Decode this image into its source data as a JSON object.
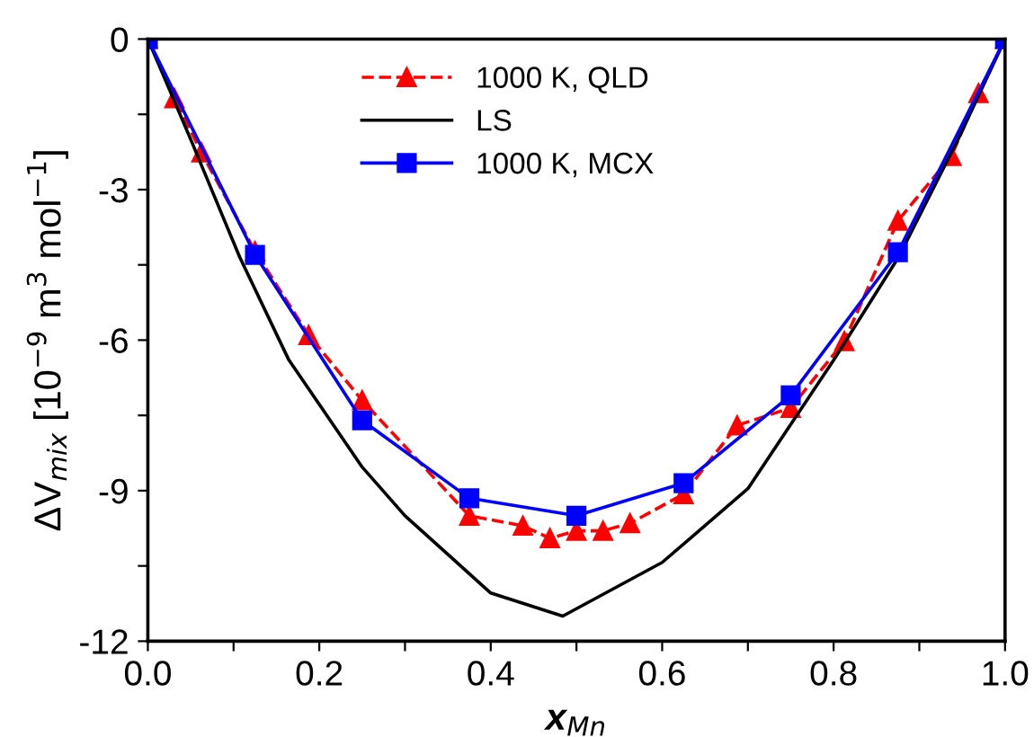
{
  "chart_data": {
    "type": "line",
    "xlabel": "x$_{Mn}$",
    "ylabel": "ΔV$_{mix}$ [10$^{−9}$ m$^{3}$ mol$^{−1}$]",
    "xlim": [
      0,
      1
    ],
    "ylim": [
      -12,
      0
    ],
    "xticks": [
      {
        "value": 0,
        "label": "0.0"
      },
      {
        "value": 0.1,
        "label": null
      },
      0.2,
      {
        "value": 0.3,
        "label": null
      },
      0.4,
      {
        "value": 0.5,
        "label": null
      },
      0.6,
      {
        "value": 0.7,
        "label": null
      },
      0.8,
      {
        "value": 0.9,
        "label": null
      },
      {
        "value": 1,
        "label": "1.0"
      }
    ],
    "yticks": [
      0,
      {
        "value": -1.5,
        "label": null
      },
      -3,
      {
        "value": -4.5,
        "label": null
      },
      -6,
      {
        "value": -7.5,
        "label": null
      },
      -9,
      {
        "value": -10.5,
        "label": null
      },
      -12
    ],
    "legend": "top",
    "grid": false,
    "series": [
      {
        "name": "1000 K, QLD",
        "color": "#ff0000",
        "marker": "triangle",
        "line_style": "dashed",
        "x": [
          0,
          0.031,
          0.0625,
          0.125,
          0.1875,
          0.25,
          0.375,
          0.4375,
          0.469,
          0.5,
          0.531,
          0.5625,
          0.625,
          0.6875,
          0.75,
          0.8125,
          0.875,
          0.9375,
          0.969,
          1
        ],
        "values": [
          0,
          -1.18,
          -2.26,
          -4.23,
          -5.9,
          -7.2,
          -9.5,
          -9.7,
          -9.95,
          -9.8,
          -9.8,
          -9.65,
          -9.07,
          -7.7,
          -7.35,
          -6.02,
          -3.62,
          -2.33,
          -1.08,
          0
        ]
      },
      {
        "name": "LS",
        "color": "#000000",
        "marker": "none",
        "line_style": "solid",
        "x": [
          0,
          0.05,
          0.107,
          0.164,
          0.25,
          0.3,
          0.4,
          0.484,
          0.6,
          0.7,
          0.8,
          0.876,
          0.946,
          1
        ],
        "values": [
          0,
          -2.0,
          -4.34,
          -6.38,
          -8.53,
          -9.5,
          -11.04,
          -11.5,
          -10.43,
          -8.96,
          -6.4,
          -4.34,
          -1.97,
          0
        ]
      },
      {
        "name": "1000 K, MCX",
        "color": "#0000ff",
        "marker": "square",
        "line_style": "solid",
        "x": [
          0,
          0.125,
          0.25,
          0.375,
          0.5,
          0.625,
          0.75,
          0.875,
          1
        ],
        "values": [
          0,
          -4.3,
          -7.6,
          -9.15,
          -9.5,
          -8.85,
          -7.1,
          -4.25,
          0
        ]
      }
    ]
  }
}
